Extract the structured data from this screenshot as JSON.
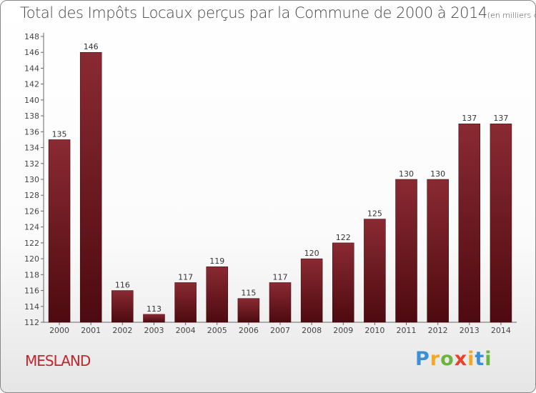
{
  "title": "Total des Impôts Locaux perçus par la Commune de 2000 à 2014",
  "title_unit": "(en milliers d'€)",
  "commune": "MESLAND",
  "logo": {
    "letters": [
      "P",
      "r",
      "o",
      "x",
      "i",
      "t",
      "i"
    ]
  },
  "colors": {
    "bar": "#7a1a22",
    "bar_dark": "#4d0a10",
    "title": "#444444",
    "commune": "#c0272d"
  },
  "chart_data": {
    "type": "bar",
    "title": "Total des Impôts Locaux perçus par la Commune de 2000 à 2014",
    "categories": [
      "2000",
      "2001",
      "2002",
      "2003",
      "2004",
      "2005",
      "2006",
      "2007",
      "2008",
      "2009",
      "2010",
      "2011",
      "2012",
      "2013",
      "2014"
    ],
    "values": [
      135,
      146,
      116,
      113,
      117,
      119,
      115,
      117,
      120,
      122,
      125,
      130,
      130,
      137,
      137
    ],
    "ylim": [
      112,
      148
    ],
    "yticks": [
      112,
      114,
      116,
      118,
      120,
      122,
      124,
      126,
      128,
      130,
      132,
      134,
      136,
      138,
      140,
      142,
      144,
      146,
      148
    ],
    "grid": false,
    "legend": "none"
  }
}
